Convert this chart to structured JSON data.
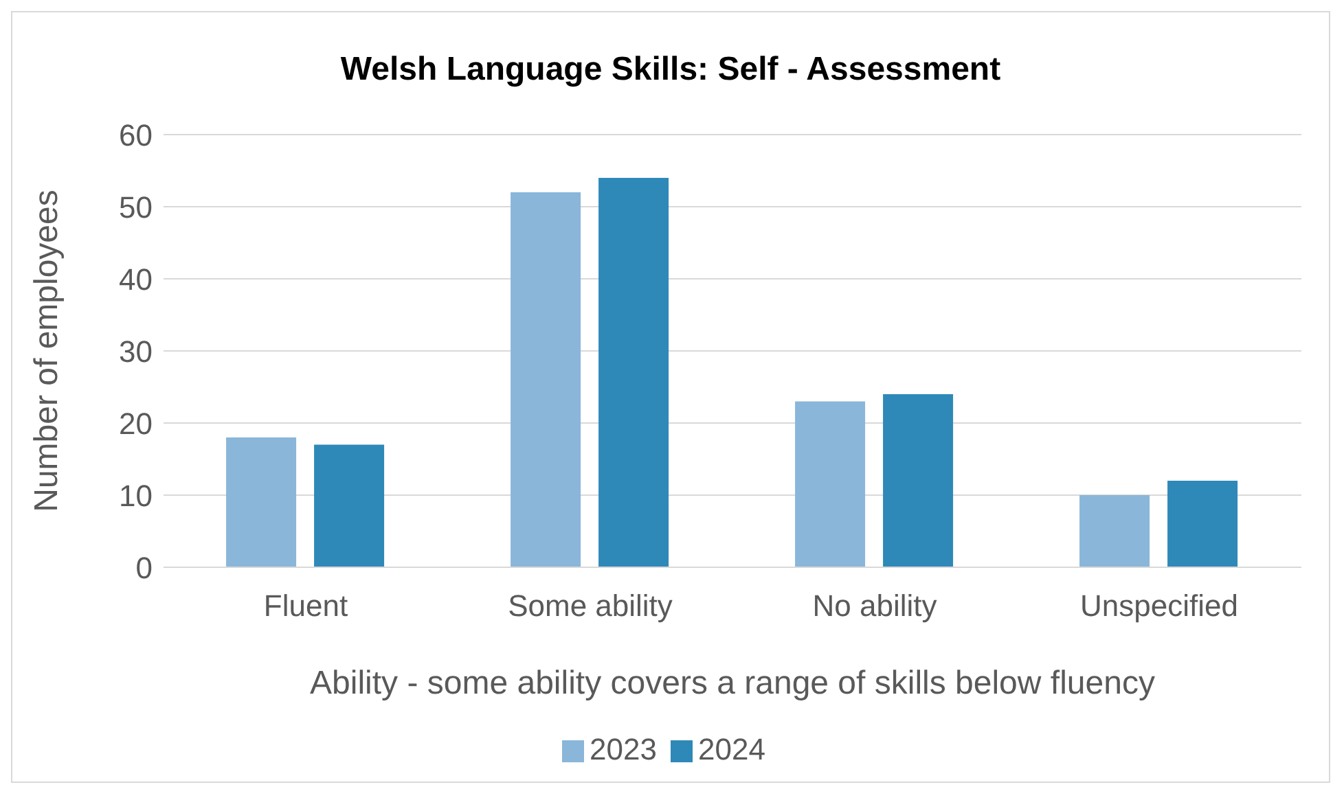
{
  "chart_data": {
    "type": "bar",
    "title": "Welsh Language Skills: Self - Assessment",
    "xlabel": "Ability - some ability covers a range of skills below fluency",
    "ylabel": "Number of employees",
    "categories": [
      "Fluent",
      "Some ability",
      "No ability",
      "Unspecified"
    ],
    "series": [
      {
        "name": "2023",
        "color": "#8ab6d9",
        "values": [
          18,
          52,
          23,
          10
        ]
      },
      {
        "name": "2024",
        "color": "#2e89b8",
        "values": [
          17,
          54,
          24,
          12
        ]
      }
    ],
    "ylim": [
      0,
      60
    ],
    "yticks": [
      0,
      10,
      20,
      30,
      40,
      50,
      60
    ],
    "grid": "y",
    "legend": "bottom"
  }
}
